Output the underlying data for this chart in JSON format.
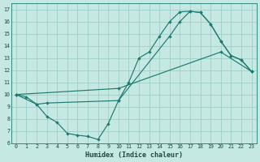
{
  "xlabel": "Humidex (Indice chaleur)",
  "bg_color": "#c5e8e3",
  "grid_color": "#a0cec9",
  "line_color": "#1e7a70",
  "xlim": [
    -0.5,
    23.5
  ],
  "ylim": [
    6,
    17.5
  ],
  "xticks": [
    0,
    1,
    2,
    3,
    4,
    5,
    6,
    7,
    8,
    9,
    10,
    11,
    12,
    13,
    14,
    15,
    16,
    17,
    18,
    19,
    20,
    21,
    22,
    23
  ],
  "yticks": [
    6,
    7,
    8,
    9,
    10,
    11,
    12,
    13,
    14,
    15,
    16,
    17
  ],
  "line1_x": [
    0,
    1,
    2,
    3,
    10,
    11,
    12,
    13,
    14,
    15,
    16,
    17,
    18,
    19,
    20,
    21,
    22,
    23
  ],
  "line1_y": [
    10,
    9.8,
    9.2,
    9.3,
    9.5,
    11.0,
    13.0,
    13.5,
    14.8,
    16.0,
    16.8,
    16.85,
    16.75,
    15.8,
    14.4,
    13.2,
    12.85,
    11.9
  ],
  "line2_x": [
    0,
    2,
    3,
    4,
    5,
    6,
    7,
    8,
    9,
    10,
    15,
    16,
    17,
    18,
    19,
    20,
    21,
    22,
    23
  ],
  "line2_y": [
    10,
    9.2,
    8.2,
    7.7,
    6.8,
    6.65,
    6.55,
    6.3,
    7.6,
    9.5,
    14.8,
    16.0,
    16.85,
    16.75,
    15.8,
    14.4,
    13.2,
    12.85,
    11.9
  ],
  "line3_x": [
    0,
    10,
    20,
    23
  ],
  "line3_y": [
    10,
    10.5,
    13.5,
    11.9
  ]
}
